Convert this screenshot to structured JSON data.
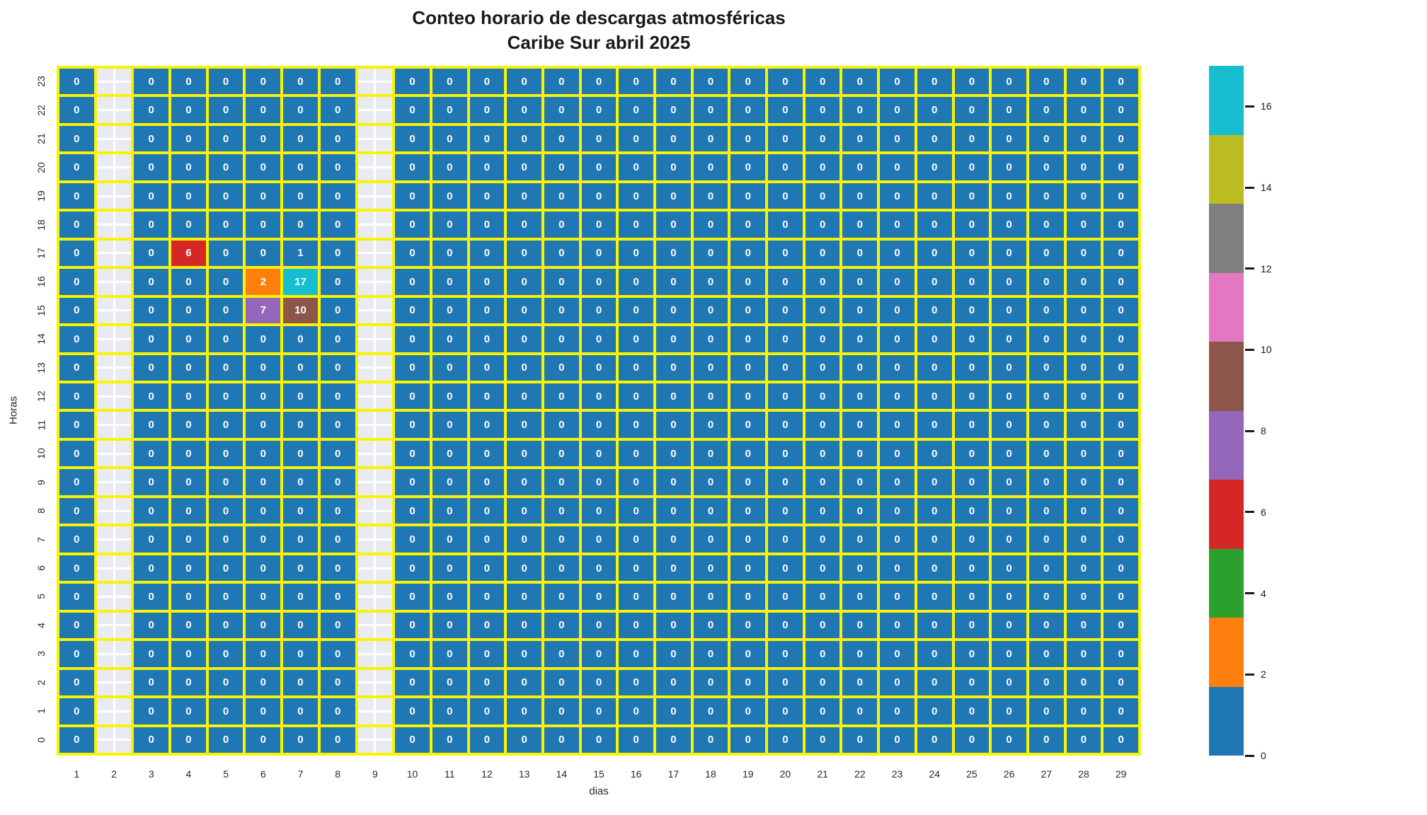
{
  "title": {
    "line1": "Conteo horario de descargas atmosféricas",
    "line2": "Caribe Sur abril 2025"
  },
  "chart_data": {
    "type": "heatmap",
    "title": "Conteo horario de descargas atmosféricas\nCaribe Sur abril 2025",
    "xlabel": "dias",
    "ylabel": "Horas",
    "x_tick_labels": [
      "1",
      "2",
      "3",
      "4",
      "5",
      "6",
      "7",
      "8",
      "9",
      "10",
      "11",
      "12",
      "13",
      "14",
      "15",
      "16",
      "17",
      "18",
      "19",
      "20",
      "21",
      "22",
      "23",
      "24",
      "25",
      "26",
      "27",
      "28",
      "29"
    ],
    "y_tick_labels_top_to_bottom": [
      "23",
      "22",
      "21",
      "20",
      "19",
      "18",
      "17",
      "16",
      "15",
      "14",
      "13",
      "12",
      "11",
      "10",
      "9",
      "8",
      "7",
      "6",
      "5",
      "4",
      "3",
      "2",
      "1",
      "0"
    ],
    "missing_days": [
      2,
      9
    ],
    "values_by_hour": {
      "23": [
        0,
        null,
        0,
        0,
        0,
        0,
        0,
        0,
        null,
        0,
        0,
        0,
        0,
        0,
        0,
        0,
        0,
        0,
        0,
        0,
        0,
        0,
        0,
        0,
        0,
        0,
        0,
        0,
        0
      ],
      "22": [
        0,
        null,
        0,
        0,
        0,
        0,
        0,
        0,
        null,
        0,
        0,
        0,
        0,
        0,
        0,
        0,
        0,
        0,
        0,
        0,
        0,
        0,
        0,
        0,
        0,
        0,
        0,
        0,
        0
      ],
      "21": [
        0,
        null,
        0,
        0,
        0,
        0,
        0,
        0,
        null,
        0,
        0,
        0,
        0,
        0,
        0,
        0,
        0,
        0,
        0,
        0,
        0,
        0,
        0,
        0,
        0,
        0,
        0,
        0,
        0
      ],
      "20": [
        0,
        null,
        0,
        0,
        0,
        0,
        0,
        0,
        null,
        0,
        0,
        0,
        0,
        0,
        0,
        0,
        0,
        0,
        0,
        0,
        0,
        0,
        0,
        0,
        0,
        0,
        0,
        0,
        0
      ],
      "19": [
        0,
        null,
        0,
        0,
        0,
        0,
        0,
        0,
        null,
        0,
        0,
        0,
        0,
        0,
        0,
        0,
        0,
        0,
        0,
        0,
        0,
        0,
        0,
        0,
        0,
        0,
        0,
        0,
        0
      ],
      "18": [
        0,
        null,
        0,
        0,
        0,
        0,
        0,
        0,
        null,
        0,
        0,
        0,
        0,
        0,
        0,
        0,
        0,
        0,
        0,
        0,
        0,
        0,
        0,
        0,
        0,
        0,
        0,
        0,
        0
      ],
      "17": [
        0,
        null,
        0,
        6,
        0,
        0,
        1,
        0,
        null,
        0,
        0,
        0,
        0,
        0,
        0,
        0,
        0,
        0,
        0,
        0,
        0,
        0,
        0,
        0,
        0,
        0,
        0,
        0,
        0
      ],
      "16": [
        0,
        null,
        0,
        0,
        0,
        2,
        17,
        0,
        null,
        0,
        0,
        0,
        0,
        0,
        0,
        0,
        0,
        0,
        0,
        0,
        0,
        0,
        0,
        0,
        0,
        0,
        0,
        0,
        0
      ],
      "15": [
        0,
        null,
        0,
        0,
        0,
        7,
        10,
        0,
        null,
        0,
        0,
        0,
        0,
        0,
        0,
        0,
        0,
        0,
        0,
        0,
        0,
        0,
        0,
        0,
        0,
        0,
        0,
        0,
        0
      ],
      "14": [
        0,
        null,
        0,
        0,
        0,
        0,
        0,
        0,
        null,
        0,
        0,
        0,
        0,
        0,
        0,
        0,
        0,
        0,
        0,
        0,
        0,
        0,
        0,
        0,
        0,
        0,
        0,
        0,
        0
      ],
      "13": [
        0,
        null,
        0,
        0,
        0,
        0,
        0,
        0,
        null,
        0,
        0,
        0,
        0,
        0,
        0,
        0,
        0,
        0,
        0,
        0,
        0,
        0,
        0,
        0,
        0,
        0,
        0,
        0,
        0
      ],
      "12": [
        0,
        null,
        0,
        0,
        0,
        0,
        0,
        0,
        null,
        0,
        0,
        0,
        0,
        0,
        0,
        0,
        0,
        0,
        0,
        0,
        0,
        0,
        0,
        0,
        0,
        0,
        0,
        0,
        0
      ],
      "11": [
        0,
        null,
        0,
        0,
        0,
        0,
        0,
        0,
        null,
        0,
        0,
        0,
        0,
        0,
        0,
        0,
        0,
        0,
        0,
        0,
        0,
        0,
        0,
        0,
        0,
        0,
        0,
        0,
        0
      ],
      "10": [
        0,
        null,
        0,
        0,
        0,
        0,
        0,
        0,
        null,
        0,
        0,
        0,
        0,
        0,
        0,
        0,
        0,
        0,
        0,
        0,
        0,
        0,
        0,
        0,
        0,
        0,
        0,
        0,
        0
      ],
      "9": [
        0,
        null,
        0,
        0,
        0,
        0,
        0,
        0,
        null,
        0,
        0,
        0,
        0,
        0,
        0,
        0,
        0,
        0,
        0,
        0,
        0,
        0,
        0,
        0,
        0,
        0,
        0,
        0,
        0
      ],
      "8": [
        0,
        null,
        0,
        0,
        0,
        0,
        0,
        0,
        null,
        0,
        0,
        0,
        0,
        0,
        0,
        0,
        0,
        0,
        0,
        0,
        0,
        0,
        0,
        0,
        0,
        0,
        0,
        0,
        0
      ],
      "7": [
        0,
        null,
        0,
        0,
        0,
        0,
        0,
        0,
        null,
        0,
        0,
        0,
        0,
        0,
        0,
        0,
        0,
        0,
        0,
        0,
        0,
        0,
        0,
        0,
        0,
        0,
        0,
        0,
        0
      ],
      "6": [
        0,
        null,
        0,
        0,
        0,
        0,
        0,
        0,
        null,
        0,
        0,
        0,
        0,
        0,
        0,
        0,
        0,
        0,
        0,
        0,
        0,
        0,
        0,
        0,
        0,
        0,
        0,
        0,
        0
      ],
      "5": [
        0,
        null,
        0,
        0,
        0,
        0,
        0,
        0,
        null,
        0,
        0,
        0,
        0,
        0,
        0,
        0,
        0,
        0,
        0,
        0,
        0,
        0,
        0,
        0,
        0,
        0,
        0,
        0,
        0
      ],
      "4": [
        0,
        null,
        0,
        0,
        0,
        0,
        0,
        0,
        null,
        0,
        0,
        0,
        0,
        0,
        0,
        0,
        0,
        0,
        0,
        0,
        0,
        0,
        0,
        0,
        0,
        0,
        0,
        0,
        0
      ],
      "3": [
        0,
        null,
        0,
        0,
        0,
        0,
        0,
        0,
        null,
        0,
        0,
        0,
        0,
        0,
        0,
        0,
        0,
        0,
        0,
        0,
        0,
        0,
        0,
        0,
        0,
        0,
        0,
        0,
        0
      ],
      "2": [
        0,
        null,
        0,
        0,
        0,
        0,
        0,
        0,
        null,
        0,
        0,
        0,
        0,
        0,
        0,
        0,
        0,
        0,
        0,
        0,
        0,
        0,
        0,
        0,
        0,
        0,
        0,
        0,
        0
      ],
      "1": [
        0,
        null,
        0,
        0,
        0,
        0,
        0,
        0,
        null,
        0,
        0,
        0,
        0,
        0,
        0,
        0,
        0,
        0,
        0,
        0,
        0,
        0,
        0,
        0,
        0,
        0,
        0,
        0,
        0
      ],
      "0": [
        0,
        null,
        0,
        0,
        0,
        0,
        0,
        0,
        null,
        0,
        0,
        0,
        0,
        0,
        0,
        0,
        0,
        0,
        0,
        0,
        0,
        0,
        0,
        0,
        0,
        0,
        0,
        0,
        0
      ]
    },
    "nonzero_cells": [
      {
        "day": 4,
        "hour": 17,
        "value": 6
      },
      {
        "day": 7,
        "hour": 17,
        "value": 1
      },
      {
        "day": 6,
        "hour": 16,
        "value": 2
      },
      {
        "day": 7,
        "hour": 16,
        "value": 17
      },
      {
        "day": 6,
        "hour": 15,
        "value": 7
      },
      {
        "day": 7,
        "hour": 15,
        "value": 10
      }
    ],
    "colormap": {
      "name": "tab10",
      "colors": [
        "#1f77b4",
        "#ff7f0e",
        "#2ca02c",
        "#d62728",
        "#9467bd",
        "#8c564b",
        "#e377c2",
        "#7f7f7f",
        "#bcbd22",
        "#17becf"
      ],
      "vmin": 0,
      "vmax": 17
    },
    "colorbar_ticks": [
      0,
      2,
      4,
      6,
      8,
      10,
      12,
      14,
      16
    ],
    "style": {
      "grid_line_color": "#f8f400",
      "nan_cell_color": "#eaeaf2",
      "nan_grid_cross_color": "#ffffff",
      "annotation_text_color": "#ffffff",
      "legend_position": "right",
      "grid": "yellow mesh between all cells"
    }
  }
}
